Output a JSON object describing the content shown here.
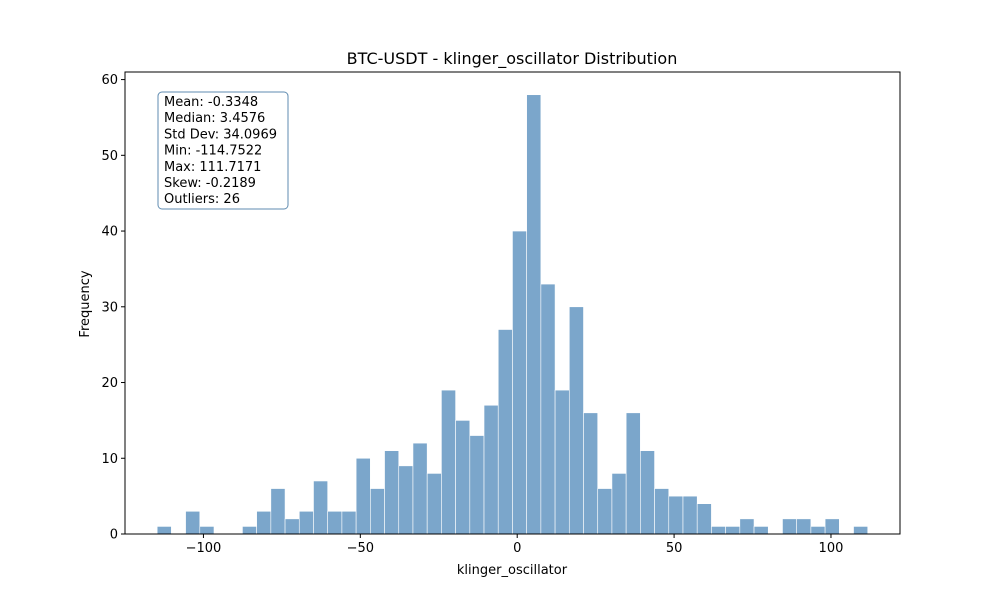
{
  "chart_data": {
    "type": "bar",
    "title": "BTC-USDT - klinger_oscillator Distribution",
    "xlabel": "klinger_oscillator",
    "ylabel": "Frequency",
    "xlim": [
      -125.0,
      122.0
    ],
    "ylim": [
      0,
      61
    ],
    "xticks": [
      -100,
      -50,
      0,
      50,
      100
    ],
    "xtick_labels": [
      "−100",
      "−50",
      "0",
      "50",
      "100"
    ],
    "yticks": [
      0,
      10,
      20,
      30,
      40,
      50,
      60
    ],
    "bin_min": -114.7522,
    "bin_width": 4.5294,
    "counts": [
      1,
      0,
      3,
      1,
      0,
      0,
      1,
      3,
      6,
      2,
      3,
      7,
      3,
      3,
      10,
      6,
      11,
      9,
      12,
      8,
      19,
      15,
      13,
      17,
      27,
      40,
      58,
      33,
      19,
      30,
      16,
      6,
      8,
      16,
      11,
      6,
      5,
      5,
      4,
      1,
      1,
      2,
      1,
      0,
      2,
      2,
      1,
      2,
      0,
      1
    ],
    "bar_color": "#7ba6cb",
    "grid": false,
    "stats_box": {
      "lines": [
        "Mean: -0.3348",
        "Median: 3.4576",
        "Std Dev: 34.0969",
        "Min: -114.7522",
        "Max: 111.7171",
        "Skew: -0.2189",
        "Outliers: 26"
      ],
      "border_color": "#5f8bb0",
      "placement": "top-left"
    }
  }
}
